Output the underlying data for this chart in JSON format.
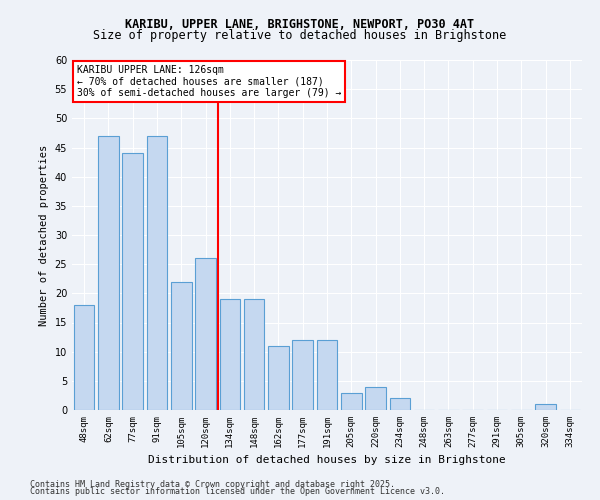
{
  "title1": "KARIBU, UPPER LANE, BRIGHSTONE, NEWPORT, PO30 4AT",
  "title2": "Size of property relative to detached houses in Brighstone",
  "xlabel": "Distribution of detached houses by size in Brighstone",
  "ylabel": "Number of detached properties",
  "categories": [
    "48sqm",
    "62sqm",
    "77sqm",
    "91sqm",
    "105sqm",
    "120sqm",
    "134sqm",
    "148sqm",
    "162sqm",
    "177sqm",
    "191sqm",
    "205sqm",
    "220sqm",
    "234sqm",
    "248sqm",
    "263sqm",
    "277sqm",
    "291sqm",
    "305sqm",
    "320sqm",
    "334sqm"
  ],
  "values": [
    18,
    47,
    44,
    47,
    22,
    26,
    19,
    19,
    11,
    12,
    12,
    3,
    4,
    2,
    0,
    0,
    0,
    0,
    0,
    1,
    0
  ],
  "bar_color": "#c5d8f0",
  "bar_edge_color": "#5a9fd4",
  "highlight_index": 5,
  "red_line_x": 5,
  "annotation_title": "KARIBU UPPER LANE: 126sqm",
  "annotation_line1": "← 70% of detached houses are smaller (187)",
  "annotation_line2": "30% of semi-detached houses are larger (79) →",
  "ylim": [
    0,
    60
  ],
  "yticks": [
    0,
    5,
    10,
    15,
    20,
    25,
    30,
    35,
    40,
    45,
    50,
    55,
    60
  ],
  "bg_color": "#eef2f8",
  "plot_bg_color": "#eef2f8",
  "footer1": "Contains HM Land Registry data © Crown copyright and database right 2025.",
  "footer2": "Contains public sector information licensed under the Open Government Licence v3.0."
}
